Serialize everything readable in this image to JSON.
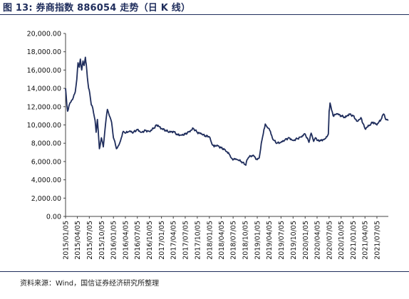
{
  "figure": {
    "title": "图 13:  券商指数 886054 走势（日 K 线）",
    "source": "资料来源：Wind，国信证券经济研究所整理"
  },
  "chart_data": {
    "type": "line",
    "title": "",
    "xlabel": "",
    "ylabel": "",
    "ylim": [
      0,
      20000
    ],
    "yticks": [
      "0.00",
      "2,000.00",
      "4,000.00",
      "6,000.00",
      "8,000.00",
      "10,000.00",
      "12,000.00",
      "14,000.00",
      "16,000.00",
      "18,000.00",
      "20,000.00"
    ],
    "xlim": [
      "2015-01-05",
      "2021-09-30"
    ],
    "xticks": [
      "2015/01/05",
      "2015/04/05",
      "2015/07/05",
      "2015/10/05",
      "2016/01/05",
      "2016/04/05",
      "2016/07/05",
      "2016/10/05",
      "2017/01/05",
      "2017/04/05",
      "2017/07/05",
      "2017/10/05",
      "2018/01/05",
      "2018/04/05",
      "2018/07/05",
      "2018/10/05",
      "2019/01/05",
      "2019/04/05",
      "2019/07/05",
      "2019/10/05",
      "2020/01/05",
      "2020/04/05",
      "2020/07/05",
      "2020/10/05",
      "2021/01/05",
      "2021/04/05",
      "2021/07/05"
    ],
    "grid": false,
    "legend": "none",
    "line_color": "#1f2d5c",
    "series": [
      {
        "x": [
          "2015-01-05",
          "2015-01-20",
          "2015-02-05",
          "2015-02-20",
          "2015-03-05",
          "2015-03-20",
          "2015-04-01",
          "2015-04-10",
          "2015-04-20",
          "2015-04-28",
          "2015-05-08",
          "2015-05-18",
          "2015-05-27",
          "2015-06-05",
          "2015-06-12",
          "2015-06-20",
          "2015-06-30",
          "2015-07-08",
          "2015-07-20",
          "2015-08-01",
          "2015-08-18",
          "2015-08-26",
          "2015-09-05",
          "2015-09-20",
          "2015-10-05",
          "2015-10-20",
          "2015-11-05",
          "2015-11-20",
          "2015-12-05",
          "2015-12-22",
          "2016-01-05",
          "2016-01-15",
          "2016-01-28",
          "2016-02-15",
          "2016-03-05",
          "2016-03-20",
          "2016-04-05",
          "2016-05-05",
          "2016-06-05",
          "2016-07-05",
          "2016-08-05",
          "2016-09-05",
          "2016-10-05",
          "2016-11-05",
          "2016-11-30",
          "2017-01-05",
          "2017-02-05",
          "2017-03-05",
          "2017-04-05",
          "2017-05-10",
          "2017-06-05",
          "2017-07-05",
          "2017-08-05",
          "2017-09-05",
          "2017-10-05",
          "2017-11-05",
          "2017-12-05",
          "2018-01-05",
          "2018-01-25",
          "2018-02-10",
          "2018-03-05",
          "2018-04-05",
          "2018-05-05",
          "2018-06-05",
          "2018-06-28",
          "2018-08-05",
          "2018-09-05",
          "2018-10-10",
          "2018-10-19",
          "2018-11-05",
          "2018-12-05",
          "2019-01-04",
          "2019-01-20",
          "2019-02-05",
          "2019-02-25",
          "2019-03-07",
          "2019-03-20",
          "2019-04-05",
          "2019-05-05",
          "2019-06-05",
          "2019-07-05",
          "2019-08-05",
          "2019-09-05",
          "2019-10-05",
          "2019-11-05",
          "2019-12-05",
          "2020-01-05",
          "2020-02-03",
          "2020-02-20",
          "2020-03-10",
          "2020-03-23",
          "2020-04-05",
          "2020-05-05",
          "2020-06-05",
          "2020-06-30",
          "2020-07-06",
          "2020-07-13",
          "2020-08-05",
          "2020-09-05",
          "2020-10-05",
          "2020-11-05",
          "2020-12-05",
          "2021-01-05",
          "2021-02-05",
          "2021-03-05",
          "2021-04-05",
          "2021-05-05",
          "2021-06-05",
          "2021-07-05",
          "2021-08-05",
          "2021-08-25",
          "2021-09-10",
          "2021-09-30"
        ],
        "values": [
          14000,
          11500,
          12300,
          12700,
          13000,
          13600,
          15000,
          16800,
          16300,
          17200,
          16000,
          17000,
          16500,
          17400,
          16600,
          15200,
          14000,
          13500,
          12200,
          11800,
          10500,
          9200,
          10600,
          7400,
          8600,
          7600,
          10000,
          11700,
          11000,
          10300,
          8600,
          8200,
          7400,
          7800,
          8600,
          9300,
          9100,
          9300,
          9200,
          9500,
          9200,
          9400,
          9300,
          9600,
          10000,
          9600,
          9400,
          9200,
          9300,
          8900,
          8900,
          9000,
          9300,
          9600,
          9200,
          9000,
          8800,
          8700,
          7900,
          7600,
          7800,
          7500,
          7300,
          6800,
          6300,
          6200,
          6000,
          5600,
          6200,
          6500,
          6700,
          6200,
          6400,
          8000,
          9500,
          10100,
          9800,
          9600,
          8400,
          8000,
          8100,
          8400,
          8600,
          8300,
          8500,
          8700,
          9000,
          8100,
          9100,
          8200,
          8600,
          8300,
          8300,
          8500,
          9000,
          11500,
          12400,
          11000,
          11200,
          11000,
          10800,
          11200,
          11000,
          10400,
          10800,
          9600,
          9900,
          10300,
          10000,
          10600,
          11200,
          10600,
          10500
        ]
      }
    ]
  }
}
